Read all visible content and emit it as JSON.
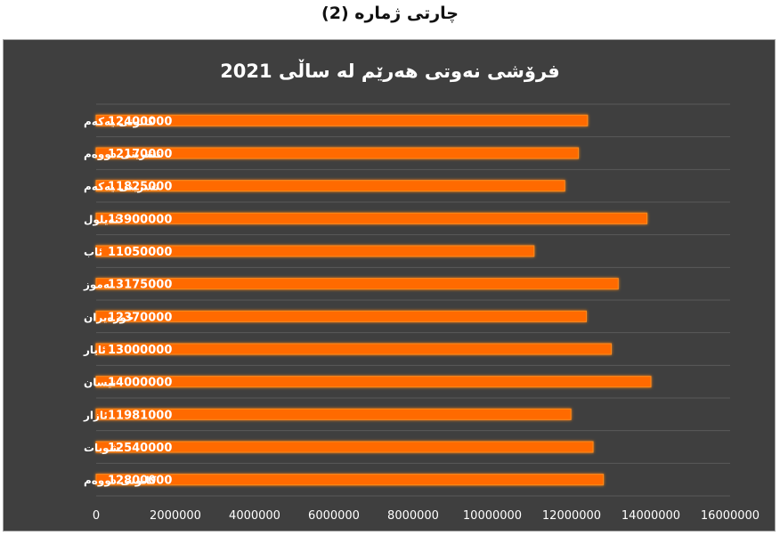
{
  "page": {
    "heading": "چارتی ژمارە (2)"
  },
  "chart_data": {
    "type": "bar",
    "orientation": "horizontal",
    "title": "فرۆشی نەوتی هەرێم لە ساڵی 2021",
    "categories": [
      "کانونی یەکەم",
      "تشرینی دووەم",
      "تشرینی یەکەم",
      "ئەیلول",
      "ئاب",
      "تەموز",
      "حوزەیران",
      "ئایار",
      "نیسان",
      "ئازار",
      "شوبات",
      "کانونی دووەم"
    ],
    "values": [
      12400000,
      12170000,
      11825000,
      13900000,
      11050000,
      13175000,
      12370000,
      13000000,
      14000000,
      11981000,
      12540000,
      12800000
    ],
    "data_labels": [
      "12400000",
      "12170000",
      "11825000",
      "13900000",
      "11050000",
      "13175000",
      "12370000",
      "13000000",
      "14000000",
      "11981000",
      "12540000",
      "12800000"
    ],
    "xlim": [
      0,
      16000000
    ],
    "x_ticks": [
      0,
      2000000,
      4000000,
      6000000,
      8000000,
      10000000,
      12000000,
      14000000,
      16000000
    ],
    "x_tick_labels": [
      "0",
      "2000000",
      "4000000",
      "6000000",
      "8000000",
      "10000000",
      "12000000",
      "14000000",
      "16000000"
    ],
    "grid": true,
    "legend": "none",
    "colors": {
      "bar": "#ff6a00",
      "bar_glow": "#ff8c1a",
      "background": "#3f3f3f",
      "grid": "#5a5a5a",
      "text": "#ffffff",
      "data_label": "#ffffff"
    }
  }
}
